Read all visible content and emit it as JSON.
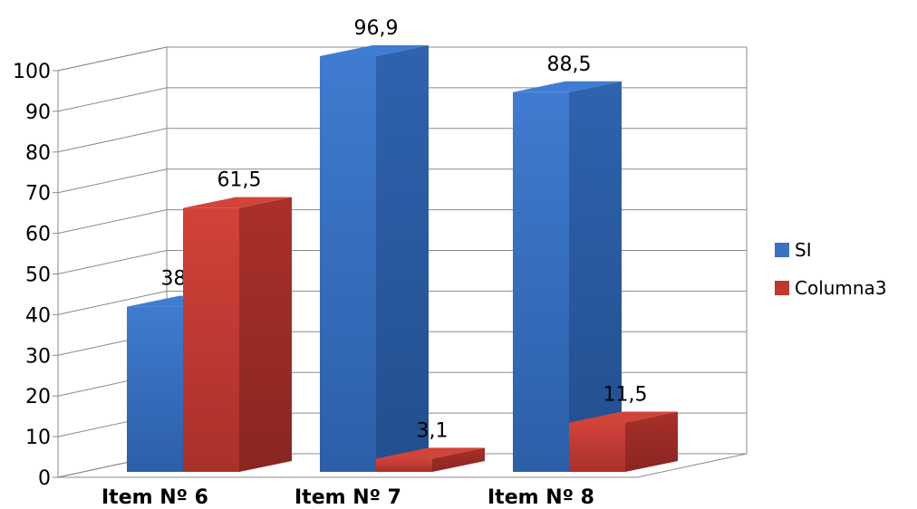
{
  "chart_data": {
    "type": "bar",
    "style": "3d-clustered-column",
    "categories": [
      "Item Nº 6",
      "Item Nº 7",
      "Item Nº 8"
    ],
    "series": [
      {
        "name": "SI",
        "values": [
          38.5,
          96.9,
          88.5
        ],
        "labels": [
          "38,5",
          "96,9",
          "88,5"
        ],
        "color": "#3A72C4"
      },
      {
        "name": "Columna3",
        "values": [
          61.5,
          3.1,
          11.5
        ],
        "labels": [
          "61,5",
          "3,1",
          "11,5"
        ],
        "color": "#C0392F"
      }
    ],
    "y_ticks": [
      "0",
      "10",
      "20",
      "30",
      "40",
      "50",
      "60",
      "70",
      "80",
      "90",
      "100"
    ],
    "ylim": [
      0,
      100
    ],
    "grid": true,
    "legend_position": "right"
  }
}
